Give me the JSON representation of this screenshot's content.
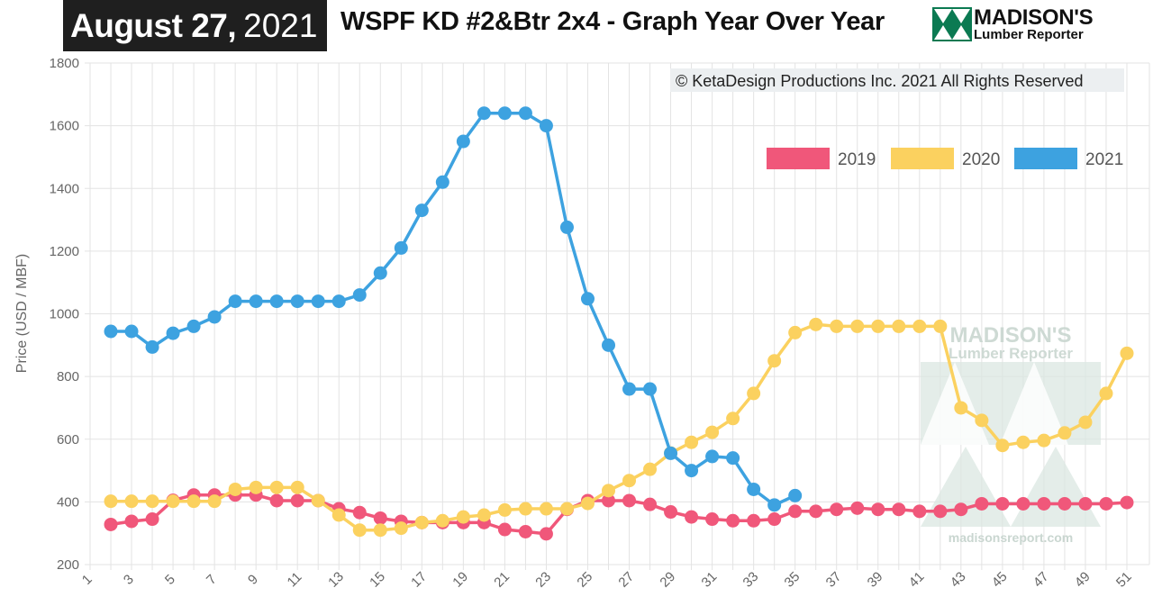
{
  "header": {
    "date_bold": "August 27,",
    "date_year": "2021",
    "title": "WSPF KD #2&Btr 2x4 - Graph Year Over Year",
    "logo_name": "MADISON'S",
    "logo_sub": "Lumber Reporter"
  },
  "watermark": {
    "name": "MADISON'S",
    "sub": "Lumber Reporter",
    "url": "madisonsreport.com"
  },
  "copyright": "© KetaDesign Productions Inc. 2021 All Rights Reserved",
  "colors": {
    "2019": "#f0577a",
    "2020": "#fbd15f",
    "2021": "#3da2e0",
    "logo_green": "#0b7a52"
  },
  "chart_data": {
    "type": "line",
    "title": "WSPF KD #2&Btr 2x4 - Graph Year Over Year",
    "xlabel": "",
    "ylabel": "Price (USD / MBF)",
    "xlim": [
      1,
      51
    ],
    "ylim": [
      200,
      1800
    ],
    "yticks": [
      200,
      400,
      600,
      800,
      1000,
      1200,
      1400,
      1600,
      1800
    ],
    "xticks": [
      1,
      3,
      5,
      7,
      9,
      11,
      13,
      15,
      17,
      19,
      21,
      23,
      25,
      27,
      29,
      31,
      33,
      35,
      37,
      39,
      41,
      43,
      45,
      47,
      49,
      51
    ],
    "grid": true,
    "legend_position": "top-right",
    "series": [
      {
        "name": "2019",
        "x": [
          2,
          3,
          4,
          5,
          6,
          7,
          8,
          9,
          10,
          11,
          12,
          13,
          14,
          15,
          16,
          17,
          18,
          19,
          20,
          21,
          22,
          23,
          24,
          25,
          26,
          27,
          28,
          29,
          30,
          31,
          32,
          33,
          34,
          35,
          36,
          37,
          38,
          39,
          40,
          41,
          42,
          43,
          44,
          45,
          46,
          47,
          48,
          49,
          50,
          51
        ],
        "values": [
          328,
          338,
          345,
          405,
          422,
          422,
          422,
          422,
          404,
          404,
          404,
          378,
          366,
          348,
          338,
          334,
          334,
          334,
          334,
          312,
          305,
          298,
          376,
          404,
          404,
          404,
          392,
          368,
          352,
          345,
          340,
          340,
          345,
          370,
          370,
          376,
          380,
          376,
          376,
          370,
          370,
          376,
          394,
          394,
          394,
          394,
          394,
          394,
          394,
          398
        ]
      },
      {
        "name": "2020",
        "x": [
          2,
          3,
          4,
          5,
          6,
          7,
          8,
          9,
          10,
          11,
          12,
          13,
          14,
          15,
          16,
          17,
          18,
          19,
          20,
          21,
          22,
          23,
          24,
          25,
          26,
          27,
          28,
          29,
          30,
          31,
          32,
          33,
          34,
          35,
          36,
          37,
          38,
          39,
          40,
          41,
          42,
          43,
          44,
          45,
          46,
          47,
          48,
          49,
          50,
          51
        ],
        "values": [
          402,
          402,
          402,
          402,
          402,
          402,
          440,
          446,
          446,
          446,
          404,
          358,
          310,
          310,
          316,
          334,
          340,
          352,
          358,
          374,
          378,
          378,
          378,
          395,
          436,
          468,
          504,
          556,
          590,
          622,
          666,
          746,
          850,
          940,
          966,
          960,
          960,
          960,
          960,
          960,
          960,
          700,
          660,
          580,
          590,
          596,
          620,
          654,
          746,
          874
        ]
      },
      {
        "name": "2021",
        "x": [
          2,
          3,
          4,
          5,
          6,
          7,
          8,
          9,
          10,
          11,
          12,
          13,
          14,
          15,
          16,
          17,
          18,
          19,
          20,
          21,
          22,
          23,
          24,
          25,
          26,
          27,
          28,
          29,
          30,
          31,
          32,
          33,
          34,
          35
        ],
        "values": [
          944,
          944,
          894,
          938,
          960,
          990,
          1040,
          1040,
          1040,
          1040,
          1040,
          1040,
          1060,
          1130,
          1210,
          1330,
          1420,
          1550,
          1640,
          1640,
          1640,
          1600,
          1276,
          1048,
          900,
          760,
          760,
          555,
          500,
          545,
          540,
          440,
          390,
          420
        ]
      }
    ]
  }
}
